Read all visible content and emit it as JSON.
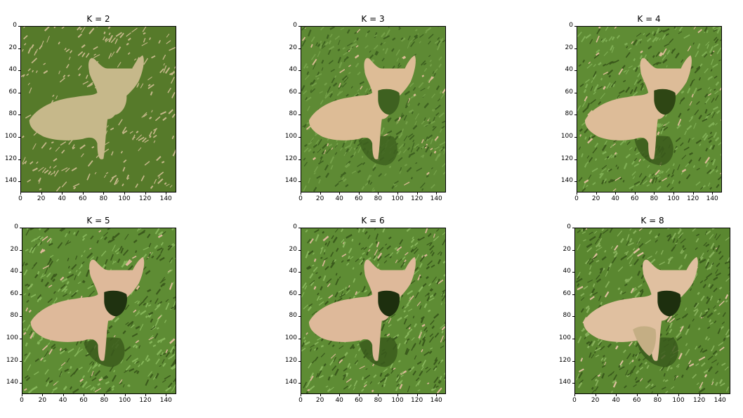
{
  "panels": [
    {
      "title": "K = 2",
      "palette": {
        "grass": "#567a2a",
        "dark": "#567a2a",
        "light": "#567a2a",
        "dog": "#c6b88a",
        "dogShade": "#c6b88a",
        "face": "#c6b88a",
        "speck": "#c6b88a"
      }
    },
    {
      "title": "K = 3",
      "palette": {
        "grass": "#5e8a34",
        "dark": "#3e6120",
        "light": "#74a048",
        "dog": "#ddbc96",
        "dogShade": "#ddbc96",
        "face": "#3e6120",
        "speck": "#ddbc96"
      }
    },
    {
      "title": "K = 4",
      "palette": {
        "grass": "#5f8c34",
        "dark": "#3b5a1c",
        "light": "#7fae54",
        "dog": "#ddbc98",
        "dogShade": "#ddbc98",
        "face": "#2e4614",
        "speck": "#ddbc98"
      }
    },
    {
      "title": "K = 5",
      "palette": {
        "grass": "#5e8c34",
        "dark": "#3b5a1c",
        "light": "#86b65a",
        "dog": "#deb99a",
        "dogShade": "#deb99a",
        "face": "#1f3210",
        "speck": "#deb99a"
      }
    },
    {
      "title": "K = 6",
      "palette": {
        "grass": "#5e8c34",
        "dark": "#3a5a1c",
        "light": "#87b55b",
        "dog": "#deb99a",
        "dogShade": "#deb99a",
        "face": "#1d2f0e",
        "speck": "#deb99a"
      }
    },
    {
      "title": "K = 8",
      "palette": {
        "grass": "#5a8730",
        "dark": "#3a5a1c",
        "light": "#86b05a",
        "dog": "#e0c0a0",
        "dogShade": "#c4ae84",
        "face": "#1d2f0e",
        "speck": "#e0c0a0"
      }
    }
  ],
  "axes": {
    "xticks": [
      "0",
      "20",
      "40",
      "60",
      "80",
      "100",
      "120",
      "140"
    ],
    "yticks": [
      "0",
      "20",
      "40",
      "60",
      "80",
      "100",
      "120",
      "140"
    ]
  }
}
